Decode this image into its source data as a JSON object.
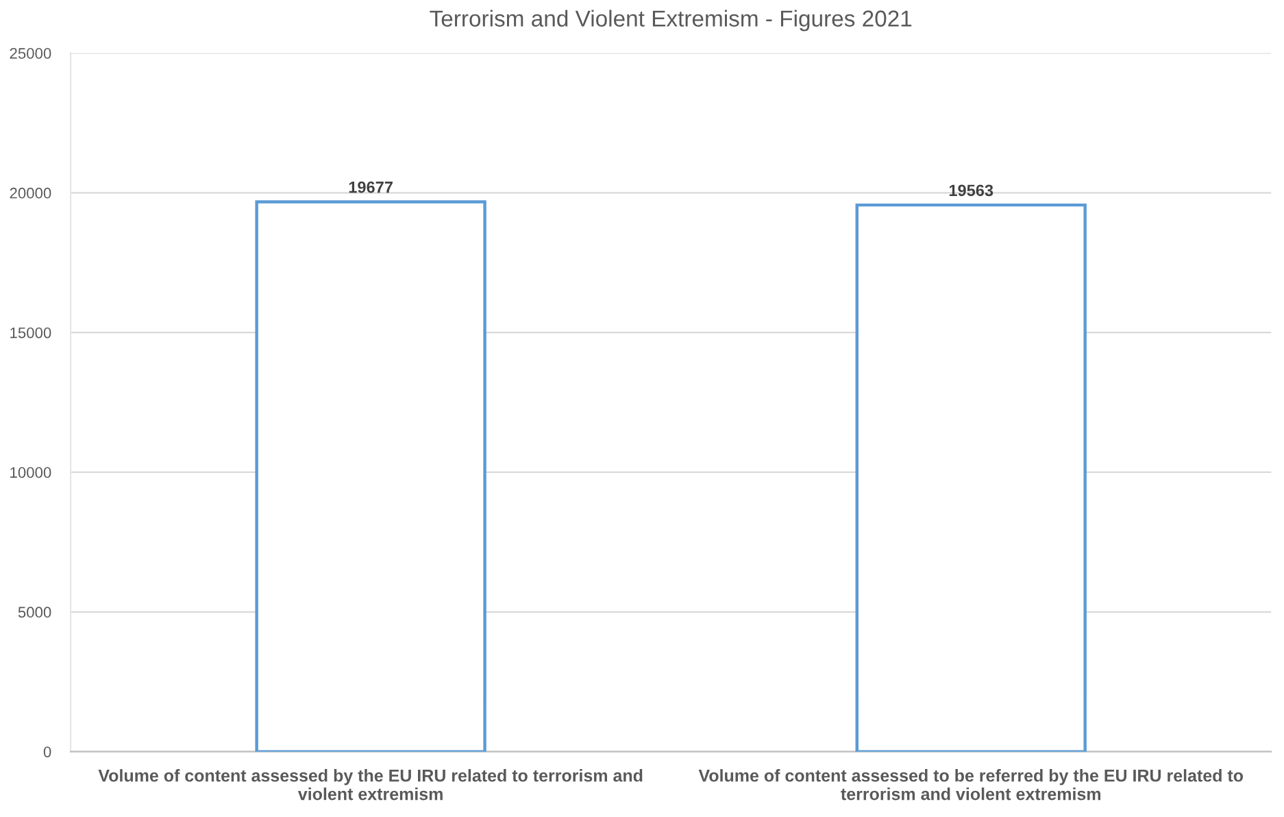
{
  "chart_data": {
    "type": "bar",
    "title": "Terrorism and Violent Extremism - Figures 2021",
    "categories": [
      "Volume of content assessed by the EU IRU related to terrorism and violent extremism",
      "Volume of content assessed to be referred by the EU IRU related to terrorism and violent extremism"
    ],
    "values": [
      19677,
      19563
    ],
    "color": "#5b9bd5",
    "data_labels": true,
    "ylim": [
      0,
      25000
    ],
    "yticks": [
      0,
      5000,
      10000,
      15000,
      20000,
      25000
    ],
    "grid": "y"
  }
}
